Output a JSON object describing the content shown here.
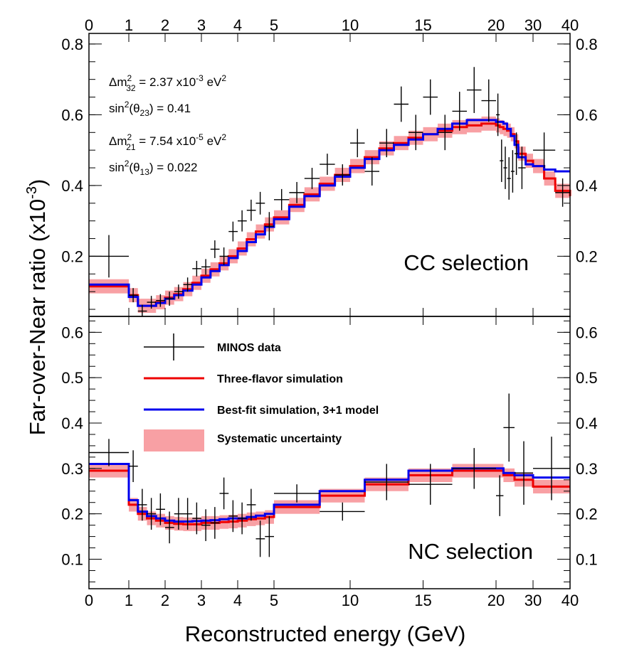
{
  "chart_data": {
    "type": "line",
    "xlabel": "Reconstructed energy (GeV)",
    "ylabel": "Far-over-Near ratio (x10",
    "ylabel_exponent": "-3",
    "ylabel_close": ")",
    "x_tick_labels": [
      "0",
      "1",
      "2",
      "3",
      "4",
      "5",
      "10",
      "15",
      "20",
      "30",
      "40"
    ],
    "x_tick_values": [
      0,
      1,
      2,
      3,
      4,
      5,
      10,
      15,
      20,
      30,
      40
    ],
    "x_axis_breaks": [
      1,
      5,
      10,
      20,
      40
    ],
    "legend_placement": "upper-left of bottom panel",
    "legend": {
      "data": "MINOS data",
      "three_flavor": "Three-flavor simulation",
      "best_fit": "Best-fit simulation, 3+1 model",
      "systematic": "Systematic uncertainty"
    },
    "colors": {
      "data": "#000000",
      "three_flavor": "#ee0000",
      "best_fit": "#0000ee",
      "systematic": "#f8a0a4"
    },
    "parameters": [
      {
        "sym": "Δm",
        "sup": "2",
        "sub": "32",
        "val": " = 2.37 x10",
        "exp": "-3",
        "unit": " eV",
        "unit_exp": "2"
      },
      {
        "sym": "sin",
        "sup": "2",
        "sub": "",
        "val": "(θ",
        "val_sub": "23",
        "tail": ") = 0.41"
      },
      {
        "sym": "Δm",
        "sup": "2",
        "sub": "21",
        "val": " = 7.54 x10",
        "exp": "-5",
        "unit": " eV",
        "unit_exp": "2"
      },
      {
        "sym": "sin",
        "sup": "2",
        "sub": "",
        "val": "(θ",
        "val_sub": "13",
        "tail": ") = 0.022"
      }
    ],
    "panels": [
      {
        "label": "CC selection",
        "ylim": [
          0.03,
          0.83
        ],
        "yticks": [
          0.2,
          0.4,
          0.6,
          0.8
        ],
        "ytick_labels": [
          "0.2",
          "0.4",
          "0.6",
          "0.8"
        ],
        "red": {
          "edges": [
            0,
            1,
            1.25,
            1.5,
            1.75,
            2,
            2.25,
            2.5,
            2.75,
            3,
            3.25,
            3.5,
            3.75,
            4,
            4.25,
            4.5,
            4.75,
            5,
            6,
            7,
            8,
            9,
            10,
            11,
            12,
            13,
            14,
            15,
            16,
            17,
            18,
            19,
            20,
            21,
            22,
            23,
            24,
            25,
            26,
            28,
            30,
            33,
            36,
            40
          ],
          "values": [
            0.115,
            0.09,
            0.06,
            0.06,
            0.07,
            0.083,
            0.093,
            0.107,
            0.125,
            0.145,
            0.163,
            0.18,
            0.2,
            0.222,
            0.248,
            0.27,
            0.29,
            0.31,
            0.345,
            0.375,
            0.405,
            0.43,
            0.455,
            0.48,
            0.505,
            0.52,
            0.535,
            0.545,
            0.555,
            0.565,
            0.57,
            0.575,
            0.57,
            0.565,
            0.56,
            0.555,
            0.545,
            0.525,
            0.49,
            0.47,
            0.455,
            0.42,
            0.385,
            0.37
          ]
        },
        "blue": {
          "edges": [
            0,
            1,
            1.25,
            1.5,
            1.75,
            2,
            2.25,
            2.5,
            2.75,
            3,
            3.25,
            3.5,
            3.75,
            4,
            4.25,
            4.5,
            4.75,
            5,
            6,
            7,
            8,
            9,
            10,
            11,
            12,
            13,
            14,
            15,
            16,
            17,
            18,
            19,
            20,
            21,
            22,
            23,
            24,
            25,
            26,
            28,
            30,
            33,
            36,
            40
          ],
          "values": [
            0.12,
            0.085,
            0.06,
            0.06,
            0.068,
            0.08,
            0.09,
            0.103,
            0.12,
            0.14,
            0.158,
            0.175,
            0.195,
            0.215,
            0.24,
            0.262,
            0.283,
            0.305,
            0.34,
            0.37,
            0.4,
            0.425,
            0.45,
            0.475,
            0.5,
            0.515,
            0.53,
            0.545,
            0.56,
            0.575,
            0.585,
            0.585,
            0.58,
            0.58,
            0.575,
            0.56,
            0.54,
            0.515,
            0.48,
            0.46,
            0.455,
            0.445,
            0.44,
            0.44
          ]
        },
        "band_halfwidth": 0.02,
        "points": [
          {
            "x": 0.5,
            "y": 0.2,
            "xlo": 0,
            "xhi": 1,
            "err": 0.06
          },
          {
            "x": 1.12,
            "y": 0.09,
            "xlo": 1,
            "xhi": 1.25,
            "err": 0.02
          },
          {
            "x": 1.37,
            "y": 0.045,
            "xlo": 1.25,
            "xhi": 1.5,
            "err": 0.018
          },
          {
            "x": 1.62,
            "y": 0.07,
            "xlo": 1.5,
            "xhi": 1.75,
            "err": 0.018
          },
          {
            "x": 1.87,
            "y": 0.075,
            "xlo": 1.75,
            "xhi": 2,
            "err": 0.018
          },
          {
            "x": 2.12,
            "y": 0.08,
            "xlo": 2,
            "xhi": 2.25,
            "err": 0.02
          },
          {
            "x": 2.37,
            "y": 0.1,
            "xlo": 2.25,
            "xhi": 2.5,
            "err": 0.02
          },
          {
            "x": 2.62,
            "y": 0.12,
            "xlo": 2.5,
            "xhi": 2.75,
            "err": 0.02
          },
          {
            "x": 2.87,
            "y": 0.165,
            "xlo": 2.75,
            "xhi": 3,
            "err": 0.022
          },
          {
            "x": 3.12,
            "y": 0.17,
            "xlo": 3,
            "xhi": 3.25,
            "err": 0.022
          },
          {
            "x": 3.37,
            "y": 0.22,
            "xlo": 3.25,
            "xhi": 3.5,
            "err": 0.025
          },
          {
            "x": 3.62,
            "y": 0.2,
            "xlo": 3.5,
            "xhi": 3.75,
            "err": 0.025
          },
          {
            "x": 3.87,
            "y": 0.27,
            "xlo": 3.75,
            "xhi": 4,
            "err": 0.028
          },
          {
            "x": 4.12,
            "y": 0.3,
            "xlo": 4,
            "xhi": 4.25,
            "err": 0.03
          },
          {
            "x": 4.37,
            "y": 0.33,
            "xlo": 4.25,
            "xhi": 4.5,
            "err": 0.03
          },
          {
            "x": 4.62,
            "y": 0.35,
            "xlo": 4.5,
            "xhi": 4.75,
            "err": 0.032
          },
          {
            "x": 4.87,
            "y": 0.285,
            "xlo": 4.75,
            "xhi": 5,
            "err": 0.04
          },
          {
            "x": 5.5,
            "y": 0.36,
            "xlo": 5,
            "xhi": 6,
            "err": 0.03
          },
          {
            "x": 6.5,
            "y": 0.38,
            "xlo": 6,
            "xhi": 7,
            "err": 0.03
          },
          {
            "x": 7.5,
            "y": 0.42,
            "xlo": 7,
            "xhi": 8,
            "err": 0.03
          },
          {
            "x": 8.5,
            "y": 0.46,
            "xlo": 8,
            "xhi": 9,
            "err": 0.03
          },
          {
            "x": 9.5,
            "y": 0.43,
            "xlo": 9,
            "xhi": 10,
            "err": 0.03
          },
          {
            "x": 10.5,
            "y": 0.52,
            "xlo": 10,
            "xhi": 11,
            "err": 0.04
          },
          {
            "x": 11.5,
            "y": 0.44,
            "xlo": 11,
            "xhi": 12,
            "err": 0.04
          },
          {
            "x": 12.5,
            "y": 0.52,
            "xlo": 12,
            "xhi": 13,
            "err": 0.04
          },
          {
            "x": 13.5,
            "y": 0.63,
            "xlo": 13,
            "xhi": 14,
            "err": 0.05
          },
          {
            "x": 14.5,
            "y": 0.55,
            "xlo": 14,
            "xhi": 15,
            "err": 0.05
          },
          {
            "x": 15.5,
            "y": 0.65,
            "xlo": 15,
            "xhi": 16,
            "err": 0.05
          },
          {
            "x": 16.5,
            "y": 0.55,
            "xlo": 16,
            "xhi": 17,
            "err": 0.05
          },
          {
            "x": 17.5,
            "y": 0.61,
            "xlo": 17,
            "xhi": 18,
            "err": 0.055
          },
          {
            "x": 18.5,
            "y": 0.67,
            "xlo": 18,
            "xhi": 19,
            "err": 0.065
          },
          {
            "x": 19.5,
            "y": 0.64,
            "xlo": 19,
            "xhi": 20,
            "err": 0.06
          },
          {
            "x": 20.5,
            "y": 0.6,
            "xlo": 20,
            "xhi": 21,
            "err": 0.06
          },
          {
            "x": 21.5,
            "y": 0.47,
            "xlo": 21,
            "xhi": 22,
            "err": 0.06
          },
          {
            "x": 22.5,
            "y": 0.45,
            "xlo": 22,
            "xhi": 23,
            "err": 0.06
          },
          {
            "x": 23.5,
            "y": 0.42,
            "xlo": 23,
            "xhi": 24,
            "err": 0.06
          },
          {
            "x": 24.5,
            "y": 0.44,
            "xlo": 24,
            "xhi": 25,
            "err": 0.06
          },
          {
            "x": 25.5,
            "y": 0.49,
            "xlo": 25,
            "xhi": 26,
            "err": 0.06
          },
          {
            "x": 27,
            "y": 0.45,
            "xlo": 26,
            "xhi": 28,
            "err": 0.06
          },
          {
            "x": 33,
            "y": 0.5,
            "xlo": 30,
            "xhi": 36,
            "err": 0.05
          },
          {
            "x": 38,
            "y": 0.38,
            "xlo": 36,
            "xhi": 40,
            "err": 0.04
          }
        ]
      },
      {
        "label": "NC selection",
        "ylim": [
          0.035,
          0.635
        ],
        "yticks": [
          0.1,
          0.2,
          0.3,
          0.4,
          0.5,
          0.6
        ],
        "ytick_labels": [
          "0.1",
          "0.2",
          "0.3",
          "0.4",
          "0.5",
          "0.6"
        ],
        "red": {
          "edges": [
            0,
            1,
            1.25,
            1.5,
            1.75,
            2,
            2.25,
            2.5,
            2.75,
            3,
            3.25,
            3.5,
            3.75,
            4,
            4.25,
            4.5,
            4.75,
            5,
            8,
            11,
            14,
            17,
            20,
            22,
            25,
            30,
            35,
            40
          ],
          "values": [
            0.295,
            0.22,
            0.2,
            0.19,
            0.185,
            0.18,
            0.178,
            0.177,
            0.177,
            0.18,
            0.18,
            0.182,
            0.183,
            0.185,
            0.188,
            0.19,
            0.193,
            0.215,
            0.24,
            0.265,
            0.285,
            0.295,
            0.295,
            0.285,
            0.275,
            0.26,
            0.26
          ]
        },
        "blue": {
          "edges": [
            0,
            1,
            1.25,
            1.5,
            1.75,
            2,
            2.25,
            2.5,
            2.75,
            3,
            3.25,
            3.5,
            3.75,
            4,
            4.25,
            4.5,
            4.75,
            5,
            8,
            11,
            14,
            17,
            20,
            22,
            25,
            30,
            35,
            40
          ],
          "values": [
            0.31,
            0.23,
            0.205,
            0.195,
            0.19,
            0.185,
            0.183,
            0.183,
            0.184,
            0.185,
            0.186,
            0.188,
            0.19,
            0.19,
            0.193,
            0.196,
            0.2,
            0.22,
            0.25,
            0.275,
            0.295,
            0.3,
            0.3,
            0.29,
            0.285,
            0.28,
            0.28
          ]
        },
        "band_halfwidth": 0.015,
        "points": [
          {
            "x": 0.5,
            "y": 0.335,
            "xlo": 0,
            "xhi": 1,
            "err": 0.03
          },
          {
            "x": 1.12,
            "y": 0.305,
            "xlo": 1,
            "xhi": 1.25,
            "err": 0.035
          },
          {
            "x": 1.37,
            "y": 0.22,
            "xlo": 1.25,
            "xhi": 1.5,
            "err": 0.035
          },
          {
            "x": 1.62,
            "y": 0.2,
            "xlo": 1.5,
            "xhi": 1.75,
            "err": 0.035
          },
          {
            "x": 1.87,
            "y": 0.21,
            "xlo": 1.75,
            "xhi": 2,
            "err": 0.035
          },
          {
            "x": 2.12,
            "y": 0.17,
            "xlo": 2,
            "xhi": 2.25,
            "err": 0.035
          },
          {
            "x": 2.37,
            "y": 0.2,
            "xlo": 2.25,
            "xhi": 2.5,
            "err": 0.035
          },
          {
            "x": 2.62,
            "y": 0.2,
            "xlo": 2.5,
            "xhi": 2.75,
            "err": 0.035
          },
          {
            "x": 2.87,
            "y": 0.19,
            "xlo": 2.75,
            "xhi": 3,
            "err": 0.035
          },
          {
            "x": 3.12,
            "y": 0.175,
            "xlo": 3,
            "xhi": 3.25,
            "err": 0.035
          },
          {
            "x": 3.37,
            "y": 0.18,
            "xlo": 3.25,
            "xhi": 3.5,
            "err": 0.035
          },
          {
            "x": 3.62,
            "y": 0.245,
            "xlo": 3.5,
            "xhi": 3.75,
            "err": 0.035
          },
          {
            "x": 3.87,
            "y": 0.195,
            "xlo": 3.75,
            "xhi": 4,
            "err": 0.035
          },
          {
            "x": 4.12,
            "y": 0.19,
            "xlo": 4,
            "xhi": 4.25,
            "err": 0.035
          },
          {
            "x": 4.37,
            "y": 0.22,
            "xlo": 4.25,
            "xhi": 4.5,
            "err": 0.035
          },
          {
            "x": 4.62,
            "y": 0.145,
            "xlo": 4.5,
            "xhi": 4.75,
            "err": 0.04
          },
          {
            "x": 4.87,
            "y": 0.15,
            "xlo": 4.75,
            "xhi": 5,
            "err": 0.045
          },
          {
            "x": 6.5,
            "y": 0.245,
            "xlo": 5,
            "xhi": 8,
            "err": 0.02
          },
          {
            "x": 9.5,
            "y": 0.205,
            "xlo": 8,
            "xhi": 11,
            "err": 0.02
          },
          {
            "x": 12.5,
            "y": 0.27,
            "xlo": 11,
            "xhi": 14,
            "err": 0.04
          },
          {
            "x": 15.5,
            "y": 0.265,
            "xlo": 14,
            "xhi": 17,
            "err": 0.045
          },
          {
            "x": 18.5,
            "y": 0.3,
            "xlo": 17,
            "xhi": 20,
            "err": 0.045
          },
          {
            "x": 21,
            "y": 0.24,
            "xlo": 20,
            "xhi": 22,
            "err": 0.045
          },
          {
            "x": 23.5,
            "y": 0.39,
            "xlo": 22,
            "xhi": 25,
            "err": 0.075
          },
          {
            "x": 27.5,
            "y": 0.29,
            "xlo": 25,
            "xhi": 30,
            "err": 0.07
          },
          {
            "x": 35,
            "y": 0.3,
            "xlo": 30,
            "xhi": 40,
            "err": 0.07
          }
        ]
      }
    ]
  }
}
